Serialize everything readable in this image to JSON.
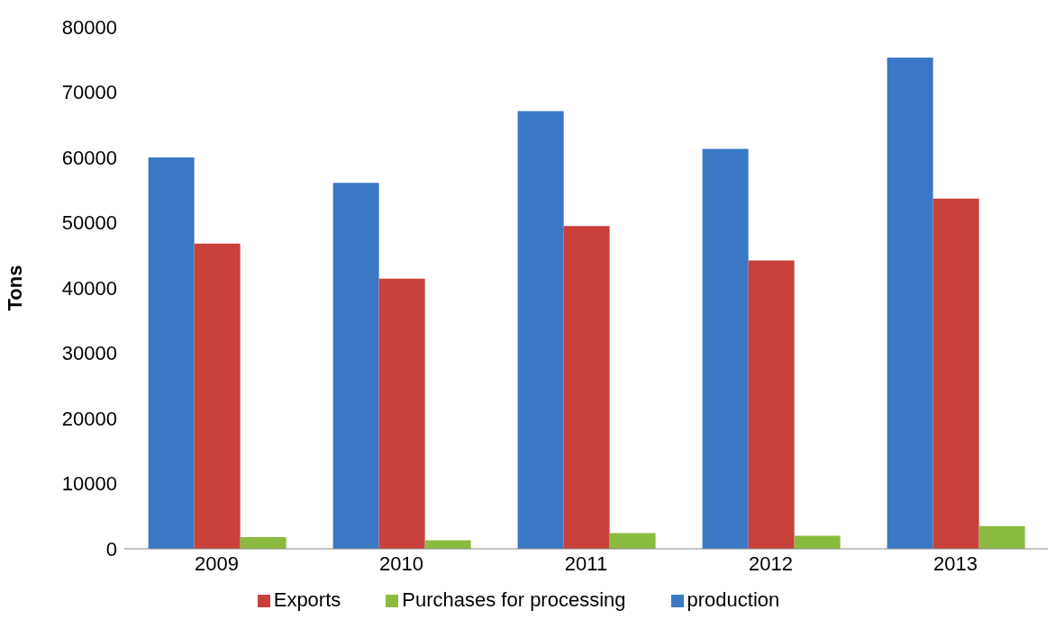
{
  "chart_data": {
    "type": "bar",
    "ylabel": "Tons",
    "categories": [
      "2009",
      "2010",
      "2011",
      "2012",
      "2013"
    ],
    "series": [
      {
        "name": "production",
        "color": "#3a78c6",
        "values": [
          60000,
          56100,
          67100,
          61300,
          75300
        ]
      },
      {
        "name": "Exports",
        "color": "#c9403a",
        "values": [
          46800,
          41400,
          49500,
          44200,
          53700
        ]
      },
      {
        "name": "Purchases for processing",
        "color": "#8bbb3e",
        "values": [
          1800,
          1300,
          2400,
          2000,
          3500
        ]
      }
    ],
    "ylim": [
      0,
      80000
    ],
    "yticks": [
      0,
      10000,
      20000,
      30000,
      40000,
      50000,
      60000,
      70000,
      80000
    ],
    "grid": false,
    "legend": "bottom"
  }
}
